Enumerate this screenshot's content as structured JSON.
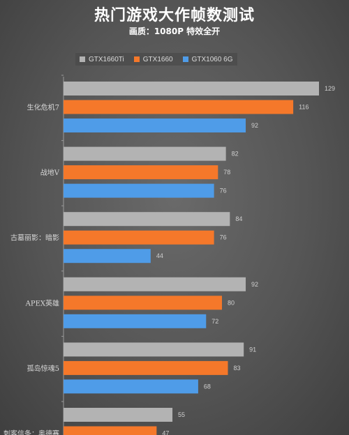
{
  "chart_data": {
    "type": "bar",
    "orientation": "horizontal",
    "title": "热门游戏大作帧数测试",
    "subtitle": "画质：1080P 特效全开",
    "categories": [
      "生化危机7",
      "战地V",
      "古墓丽影：暗影",
      "APEX英雄",
      "孤岛惊魂5",
      "刺客信条：奥德赛"
    ],
    "series": [
      {
        "name": "GTX1660Ti",
        "color": "#b3b3b3",
        "values": [
          129,
          82,
          84,
          92,
          91,
          55
        ]
      },
      {
        "name": "GTX1660",
        "color": "#f5782a",
        "values": [
          116,
          78,
          76,
          80,
          83,
          47
        ]
      },
      {
        "name": "GTX1060 6G",
        "color": "#4f9ce8",
        "values": [
          92,
          76,
          44,
          72,
          68,
          null
        ]
      }
    ],
    "xlim": [
      0,
      129
    ],
    "grid": false,
    "legend_position": "top"
  }
}
